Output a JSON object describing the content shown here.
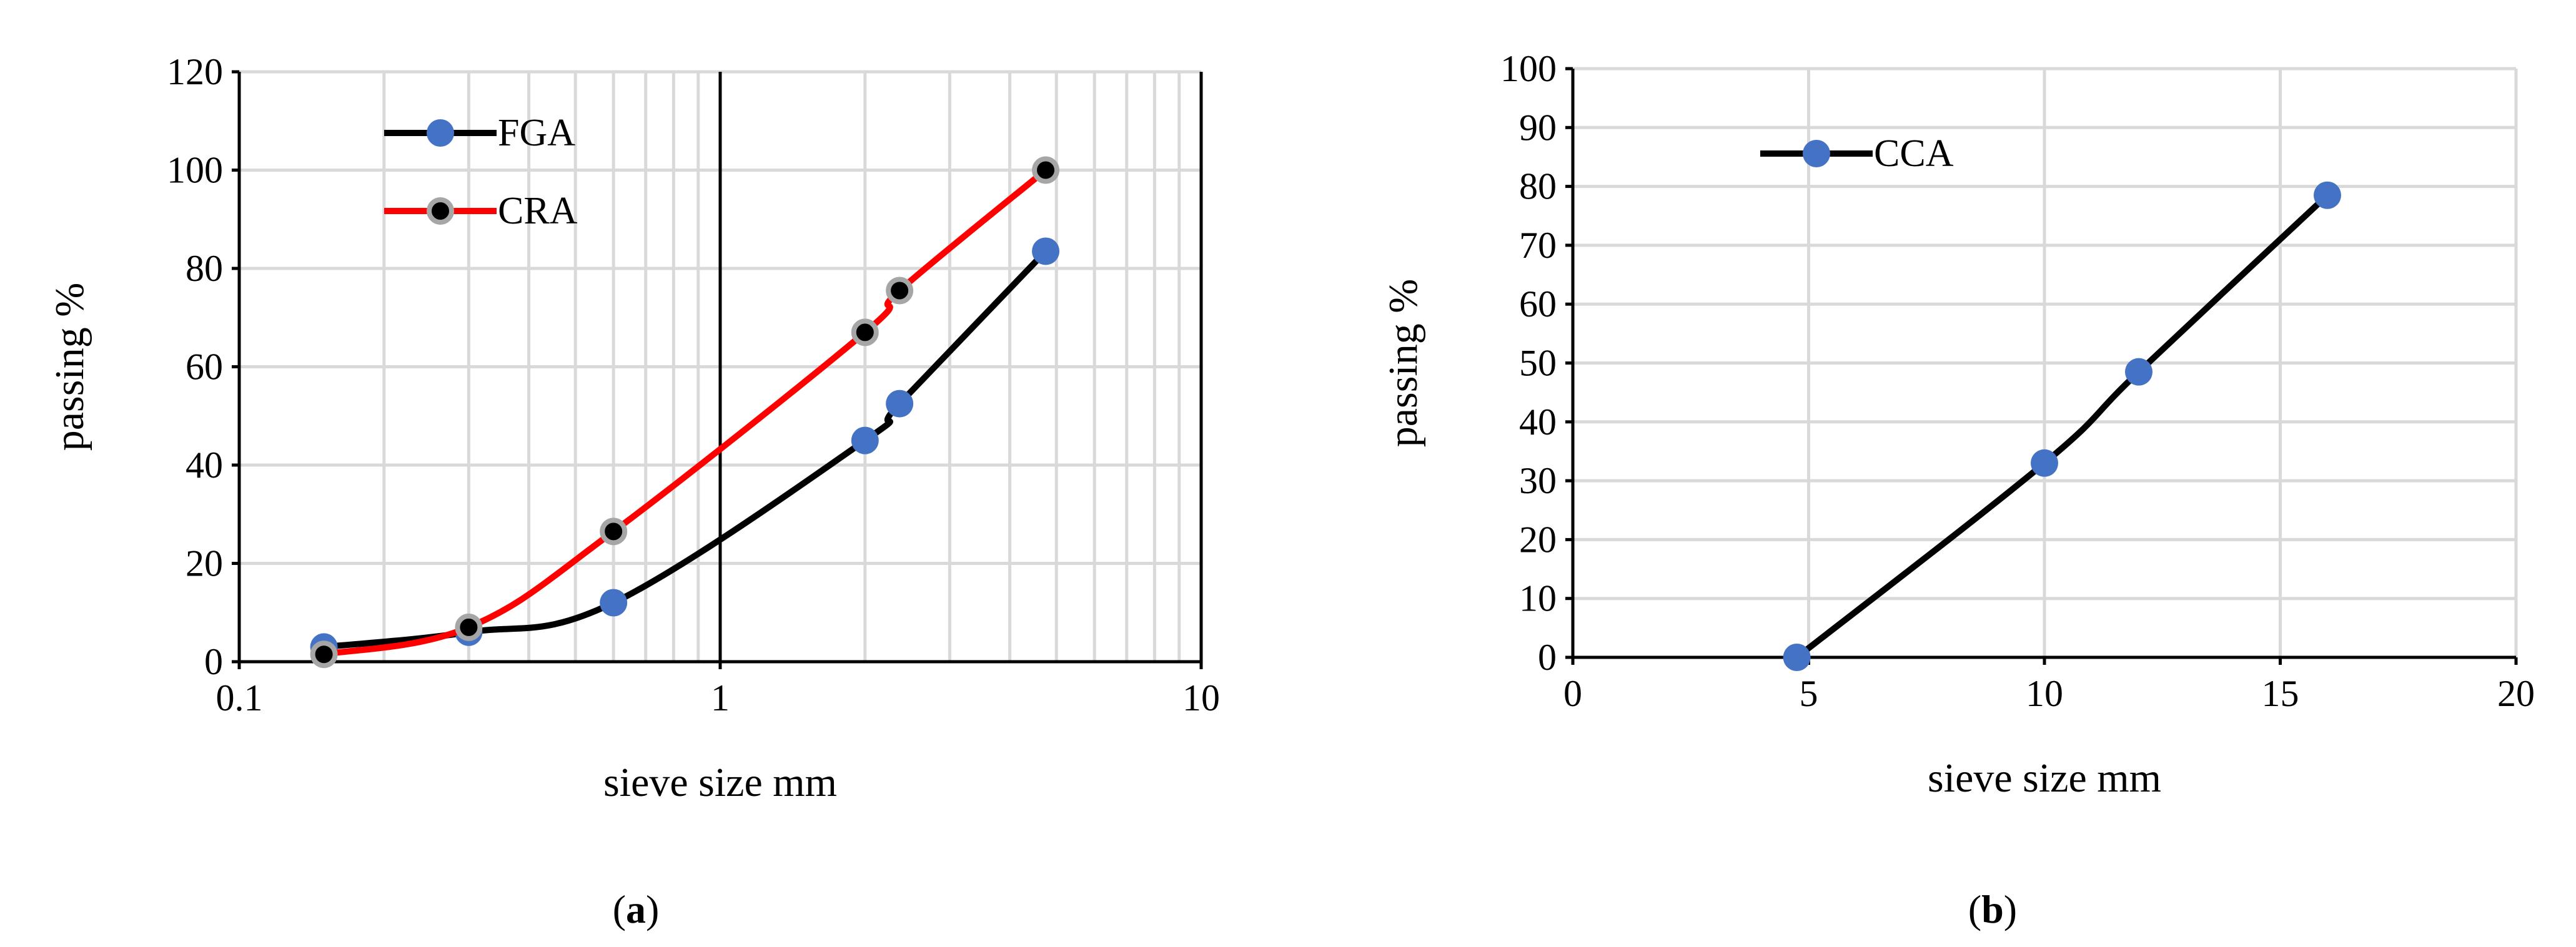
{
  "chart_data": [
    {
      "type": "line",
      "panel": "(a)",
      "panel_letter": "a",
      "xscale": "log",
      "xlabel": "sieve size mm",
      "ylabel": "passing %",
      "xlim": [
        0.1,
        10
      ],
      "ylim": [
        0,
        120
      ],
      "xticks": [
        0.1,
        1,
        10
      ],
      "xtick_labels": [
        "0.1",
        "1",
        "10"
      ],
      "yticks": [
        0,
        20,
        40,
        60,
        80,
        100,
        120
      ],
      "ytick_labels": [
        "0",
        "20",
        "40",
        "60",
        "80",
        "100",
        "120"
      ],
      "grid": true,
      "legend_position": "top-left",
      "series": [
        {
          "name": "FGA",
          "color": "#000000",
          "marker_color": "#4472C4",
          "x": [
            0.15,
            0.3,
            0.6,
            2.0,
            2.36,
            4.75
          ],
          "y": [
            3,
            6,
            12,
            45,
            52.5,
            83.5
          ]
        },
        {
          "name": "CRA",
          "color": "#FF0000",
          "marker_color": "#000000",
          "x": [
            0.15,
            0.3,
            0.6,
            2.0,
            2.36,
            4.75
          ],
          "y": [
            1.5,
            7,
            26.5,
            67,
            75.5,
            100
          ]
        }
      ]
    },
    {
      "type": "line",
      "panel": "(b)",
      "panel_letter": "b",
      "xscale": "linear",
      "xlabel": "sieve size mm",
      "ylabel": "passing %",
      "xlim": [
        0,
        20
      ],
      "ylim": [
        0,
        100
      ],
      "xticks": [
        0,
        5,
        10,
        15,
        20
      ],
      "xtick_labels": [
        "0",
        "5",
        "10",
        "15",
        "20"
      ],
      "yticks": [
        0,
        10,
        20,
        30,
        40,
        50,
        60,
        70,
        80,
        90,
        100
      ],
      "ytick_labels": [
        "0",
        "10",
        "20",
        "30",
        "40",
        "50",
        "60",
        "70",
        "80",
        "90",
        "100"
      ],
      "grid": true,
      "legend_position": "top-left",
      "series": [
        {
          "name": "CCA",
          "color": "#000000",
          "marker_color": "#4472C4",
          "x": [
            4.75,
            10,
            12,
            16
          ],
          "y": [
            0,
            33,
            48.5,
            78.5
          ]
        }
      ]
    }
  ]
}
